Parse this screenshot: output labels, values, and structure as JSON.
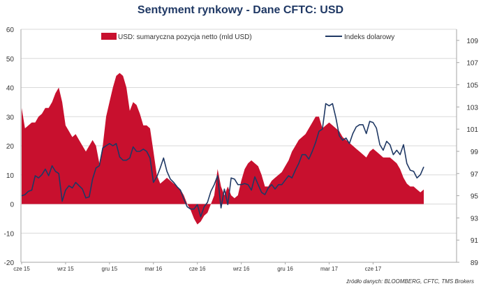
{
  "title": "Sentyment rynkowy - Dane CFTC:  USD",
  "source": "źródło danych: BLOOMBERG, CFTC, TMS Brokers",
  "colors": {
    "area": "#c8102e",
    "line": "#1f3864",
    "grid": "#d9d9d9",
    "axis": "#a6a6a6"
  },
  "chart_data": {
    "type": "line",
    "title": "Sentyment rynkowy - Dane CFTC:  USD",
    "x_tick_labels": [
      "cze 15",
      "wrz 15",
      "gru 15",
      "mar 16",
      "cze 16",
      "wrz 16",
      "gru 16",
      "mar 17",
      "cze 17"
    ],
    "y_left": {
      "ylim": [
        -20,
        60
      ],
      "ticks": [
        -20,
        -10,
        0,
        10,
        20,
        30,
        40,
        50,
        60
      ]
    },
    "y_right": {
      "ylim": [
        89,
        110
      ],
      "ticks": [
        89,
        91,
        93,
        95,
        97,
        99,
        101,
        103,
        105,
        107,
        109
      ]
    },
    "legend_position": "top",
    "grid": true,
    "series": [
      {
        "name": "USD: sumaryczna pozycja netto (mld USD)",
        "type": "area",
        "axis": "left",
        "values": [
          33,
          26,
          27,
          28,
          28,
          30,
          31,
          33,
          33,
          35,
          38,
          40,
          35,
          27,
          25,
          23,
          24,
          22,
          20,
          18,
          20,
          22,
          20,
          14,
          20,
          30,
          35,
          40,
          44,
          45,
          44,
          40,
          32,
          35,
          34,
          31,
          27,
          27,
          26,
          18,
          10,
          7,
          8,
          9,
          8,
          7,
          6,
          5,
          3,
          0,
          -2,
          -5,
          -7,
          -6,
          -4,
          -3,
          0,
          3,
          12,
          6,
          3,
          6,
          3,
          2,
          3,
          8,
          12,
          14,
          15,
          14,
          13,
          10,
          6,
          6,
          8,
          9,
          10,
          11,
          13,
          15,
          18,
          20,
          22,
          23,
          24,
          26,
          28,
          30,
          30,
          26,
          27,
          28,
          27,
          26,
          25,
          23,
          22,
          21,
          20,
          19,
          18,
          17,
          16,
          18,
          19,
          18,
          17,
          16,
          16,
          16,
          15,
          14,
          12,
          9,
          7,
          6,
          6,
          5,
          4,
          5
        ]
      },
      {
        "name": "Indeks dolarowy",
        "type": "line",
        "axis": "right",
        "values": [
          95.0,
          95.1,
          95.4,
          95.5,
          96.8,
          96.6,
          96.9,
          97.4,
          96.8,
          97.7,
          97.2,
          97.0,
          94.5,
          95.5,
          95.9,
          95.7,
          96.2,
          95.9,
          95.6,
          94.8,
          94.9,
          96.5,
          97.5,
          97.7,
          99.3,
          99.5,
          99.7,
          99.5,
          99.7,
          98.5,
          98.2,
          98.2,
          98.4,
          99.4,
          99.0,
          99.0,
          99.2,
          99.0,
          98.4,
          96.2,
          96.7,
          97.5,
          98.4,
          97.2,
          96.5,
          96.2,
          95.8,
          95.5,
          94.7,
          94.0,
          93.8,
          93.8,
          94.2,
          93.1,
          94.0,
          94.4,
          95.4,
          96.0,
          96.8,
          93.9,
          95.6,
          94.2,
          96.6,
          96.5,
          96.0,
          96.0,
          96.1,
          96.0,
          95.5,
          96.7,
          96.0,
          95.3,
          95.1,
          95.7,
          96.0,
          95.6,
          96.0,
          96.0,
          96.4,
          96.8,
          96.6,
          97.3,
          97.9,
          98.7,
          98.7,
          98.3,
          99.0,
          99.8,
          100.8,
          101.0,
          103.3,
          103.1,
          103.3,
          102.0,
          100.4,
          100.0,
          100.2,
          99.7,
          100.6,
          101.2,
          101.4,
          101.4,
          100.6,
          101.7,
          101.6,
          101.1,
          99.6,
          99.1,
          99.9,
          99.6,
          98.7,
          99.1,
          98.7,
          99.6,
          97.9,
          97.3,
          97.2,
          96.6,
          96.9,
          97.6
        ]
      }
    ]
  }
}
